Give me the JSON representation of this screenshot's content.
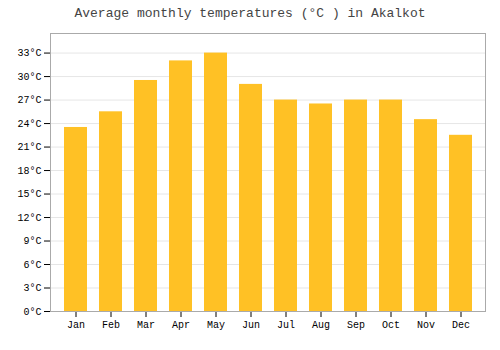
{
  "chart_data": {
    "type": "bar",
    "title": "Average monthly temperatures (°C ) in Akalkot",
    "categories": [
      "Jan",
      "Feb",
      "Mar",
      "Apr",
      "May",
      "Jun",
      "Jul",
      "Aug",
      "Sep",
      "Oct",
      "Nov",
      "Dec"
    ],
    "values": [
      23.5,
      25.5,
      29.5,
      32.0,
      33.0,
      29.0,
      27.0,
      26.5,
      27.0,
      27.0,
      24.5,
      22.5
    ],
    "color": "#FFC125",
    "ylim": [
      0,
      35.5
    ],
    "yticks": [
      {
        "value": 0,
        "label": "0°C"
      },
      {
        "value": 3,
        "label": "3°C"
      },
      {
        "value": 6,
        "label": "6°C"
      },
      {
        "value": 9,
        "label": "9°C"
      },
      {
        "value": 12,
        "label": "12°C"
      },
      {
        "value": 15,
        "label": "15°C"
      },
      {
        "value": 18,
        "label": "18°C"
      },
      {
        "value": 21,
        "label": "21°C"
      },
      {
        "value": 24,
        "label": "24°C"
      },
      {
        "value": 27,
        "label": "27°C"
      },
      {
        "value": 30,
        "label": "30°C"
      },
      {
        "value": 33,
        "label": "33°C"
      }
    ],
    "grid": true
  }
}
